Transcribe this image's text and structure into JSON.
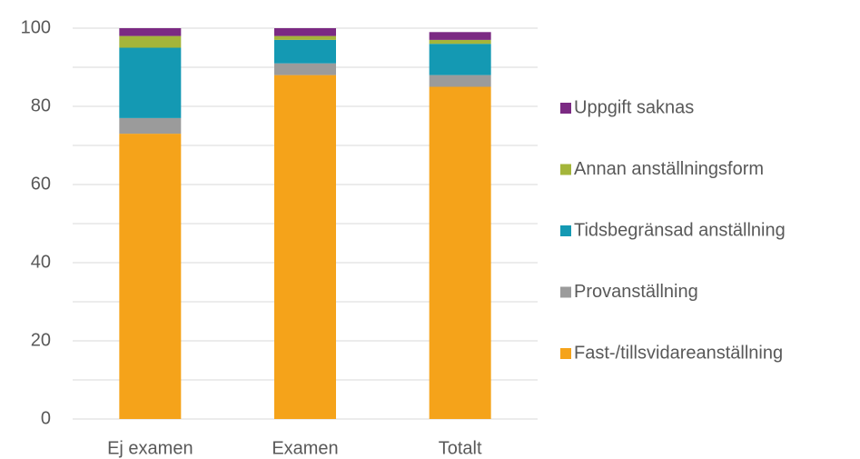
{
  "chart_data": {
    "type": "stacked_bar",
    "categories": [
      "Ej examen",
      "Examen",
      "Totalt"
    ],
    "series": [
      {
        "name": "Fast-/tillsvidareanställning",
        "color": "#f5a31a",
        "values": [
          73,
          88,
          85
        ]
      },
      {
        "name": "Provanställning",
        "color": "#9b9b9b",
        "values": [
          4,
          3,
          3
        ]
      },
      {
        "name": "Tidsbegränsad anställning",
        "color": "#1499b3",
        "values": [
          18,
          6,
          8
        ]
      },
      {
        "name": "Annan anställningsform",
        "color": "#a4b53a",
        "values": [
          3,
          1,
          1
        ]
      },
      {
        "name": "Uppgift saknas",
        "color": "#7b2a83",
        "values": [
          2,
          2,
          2
        ]
      }
    ],
    "ylim": [
      0,
      100
    ],
    "yticks": [
      0,
      20,
      40,
      60,
      80,
      100
    ],
    "minor_gridlines": [
      10,
      30,
      50,
      70,
      90
    ],
    "grid": true,
    "legend": "right"
  }
}
